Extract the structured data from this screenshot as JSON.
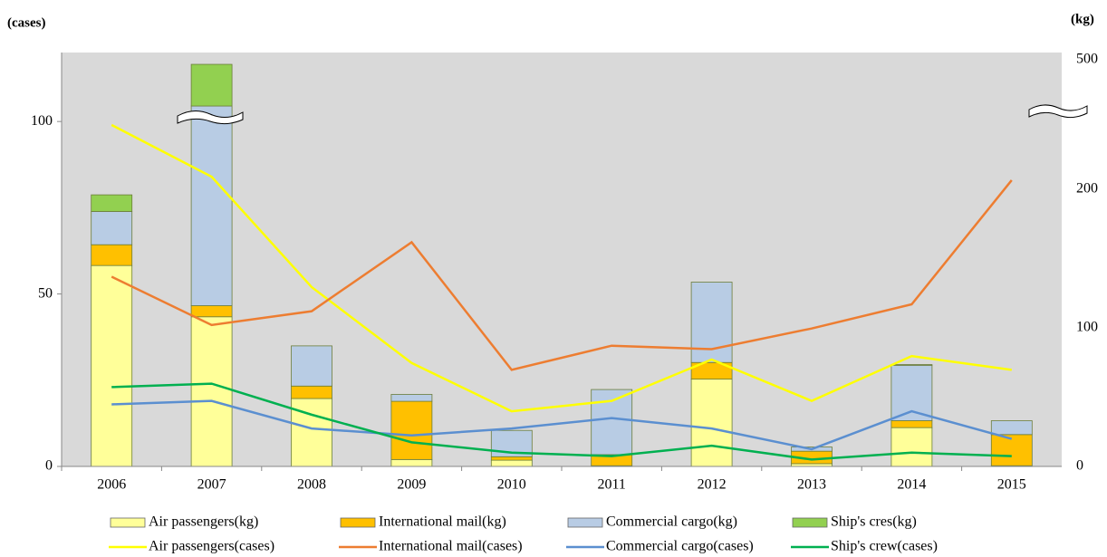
{
  "chart_data": {
    "type": "combo",
    "y_label": "(cases)",
    "y2_label": "(kg)",
    "categories": [
      "2006",
      "2007",
      "2008",
      "2009",
      "2010",
      "2011",
      "2012",
      "2013",
      "2014",
      "2015"
    ],
    "ylim": [
      0,
      120
    ],
    "yticks": [
      0,
      50,
      100
    ],
    "y2lim": [
      0,
      530
    ],
    "y2ticks": [
      0,
      100,
      200,
      500
    ],
    "y2break": 250,
    "series": [
      {
        "name": "Air passengers(kg)",
        "type": "bar",
        "axis": "y2",
        "color": "#ffff99",
        "values": [
          145,
          108,
          49,
          5,
          4.5,
          0.5,
          63,
          2,
          28,
          0.5
        ]
      },
      {
        "name": "International mail(kg)",
        "type": "bar",
        "axis": "y2",
        "color": "#ffc000",
        "values": [
          15,
          8,
          9,
          42,
          2.5,
          8,
          12,
          9,
          5,
          22.5
        ]
      },
      {
        "name": "Commercial cargo(kg)",
        "type": "bar",
        "axis": "y2",
        "color": "#b8cce4",
        "values": [
          24,
          192,
          29,
          5,
          19,
          47,
          58,
          3,
          40,
          10
        ]
      },
      {
        "name": "Ship's cres(kg)",
        "type": "bar",
        "axis": "y2",
        "color": "#92d050",
        "values": [
          12,
          173,
          0,
          0,
          0,
          0,
          0,
          0,
          0.5,
          0
        ]
      },
      {
        "name": "Air passengers(cases)",
        "type": "line",
        "color": "#ffff00",
        "values": [
          99,
          84,
          52,
          30,
          16,
          19,
          31,
          19,
          32,
          28
        ]
      },
      {
        "name": "International mail(cases)",
        "type": "line",
        "color": "#ed7d31",
        "values": [
          55,
          41,
          45,
          65,
          28,
          35,
          34,
          40,
          47,
          83
        ]
      },
      {
        "name": "Commercial cargo(cases)",
        "type": "line",
        "color": "#5b8fd0",
        "values": [
          18,
          19,
          11,
          9,
          11,
          14,
          11,
          5,
          16,
          8
        ]
      },
      {
        "name": "Ship's crew(cases)",
        "type": "line",
        "color": "#00b050",
        "values": [
          23,
          24,
          15,
          7,
          4,
          3,
          6,
          2,
          4,
          3
        ]
      }
    ]
  }
}
